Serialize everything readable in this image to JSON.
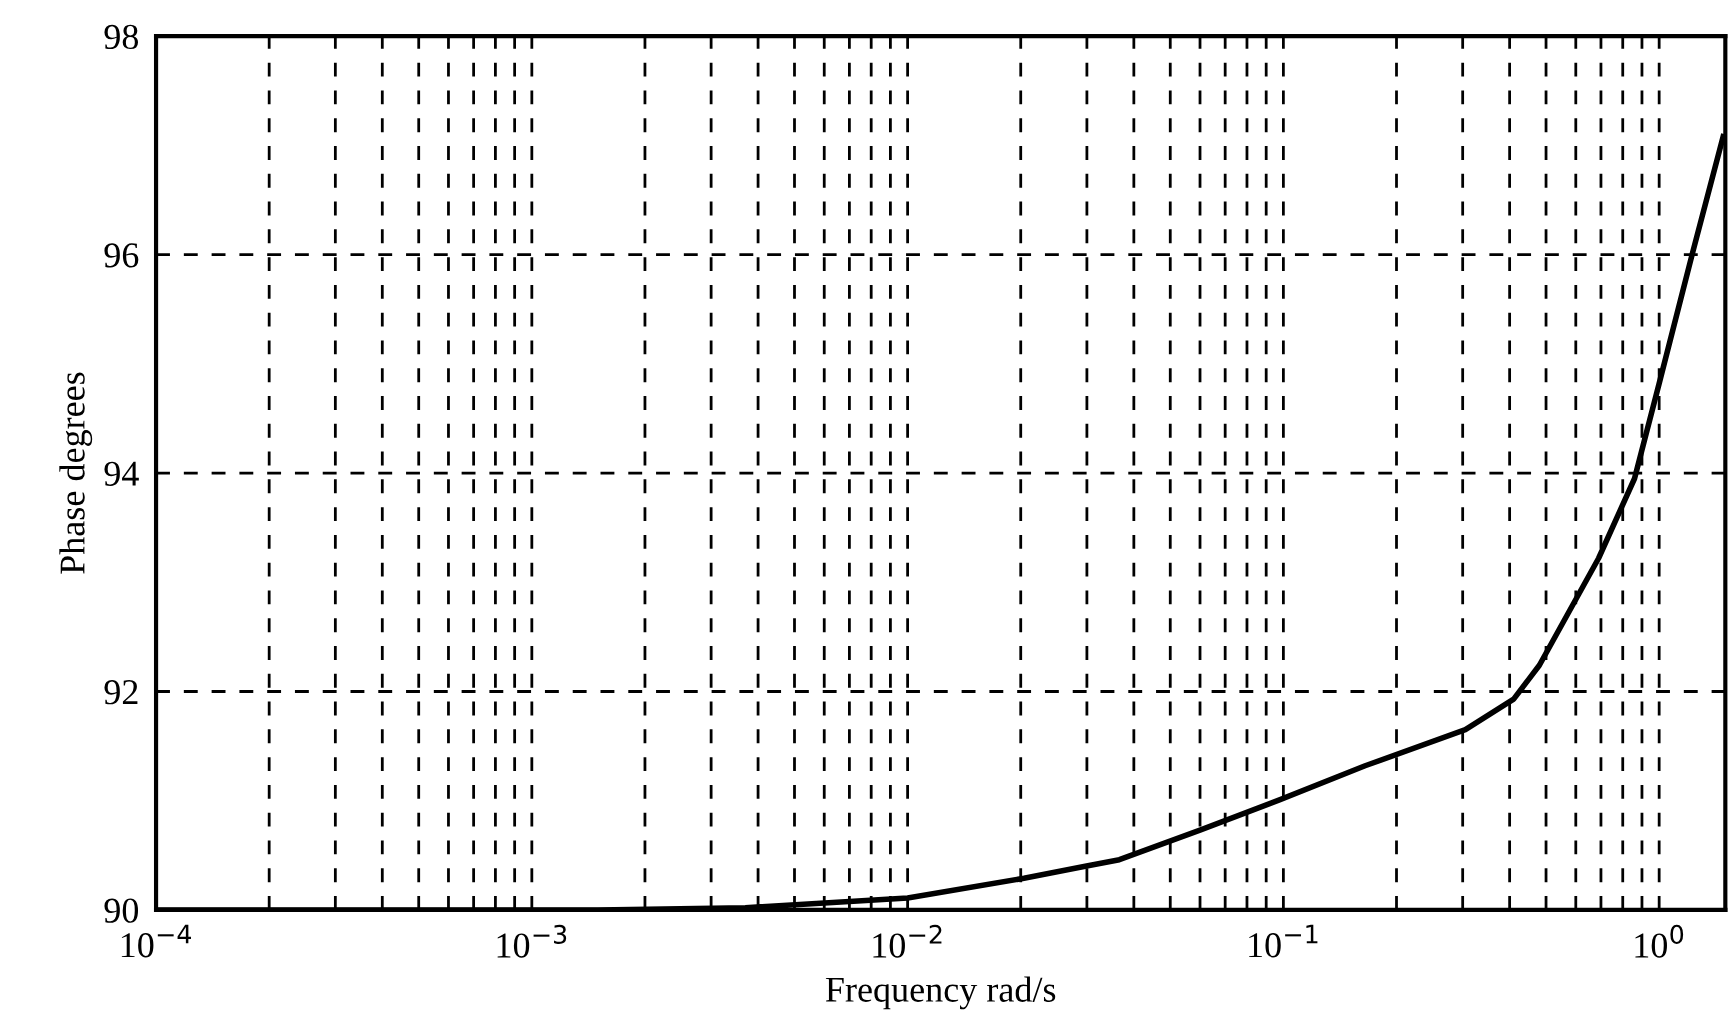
{
  "chart_data": {
    "type": "line",
    "xlabel": "Frequency rad/s",
    "ylabel": "Phase degrees",
    "log": "x",
    "x": [
      0.0001,
      0.0003,
      0.001,
      0.0015,
      0.0037,
      0.01,
      0.0204,
      0.0297,
      0.0366,
      0.06,
      0.098,
      0.165,
      0.305,
      0.41,
      0.48,
      0.69,
      0.86,
      1.0,
      1.23,
      1.48
    ],
    "series": [
      {
        "color": "#000000",
        "values": [
          90.0,
          90.0,
          90.0,
          90.0,
          90.02,
          90.11,
          90.29,
          90.4,
          90.46,
          90.73,
          91.01,
          91.32,
          91.65,
          91.93,
          92.24,
          93.22,
          93.95,
          94.82,
          96.03,
          97.08
        ]
      }
    ],
    "xlim": [
      0.0001,
      1.5
    ],
    "xticks": [
      {
        "value": 0.0001,
        "label": "10$^{−4}$"
      },
      {
        "value": 0.001,
        "label": "10$^{−3}$"
      },
      {
        "value": 0.01,
        "label": "10$^{−2}$"
      },
      {
        "value": 0.1,
        "label": "10$^{−1}$"
      },
      {
        "value": 1,
        "label": "10$^{0}$"
      }
    ],
    "ylim": [
      90,
      98
    ],
    "yticks": [
      90,
      92,
      94,
      96,
      98
    ],
    "grid": true,
    "line_style": "solid",
    "marker": "none"
  }
}
